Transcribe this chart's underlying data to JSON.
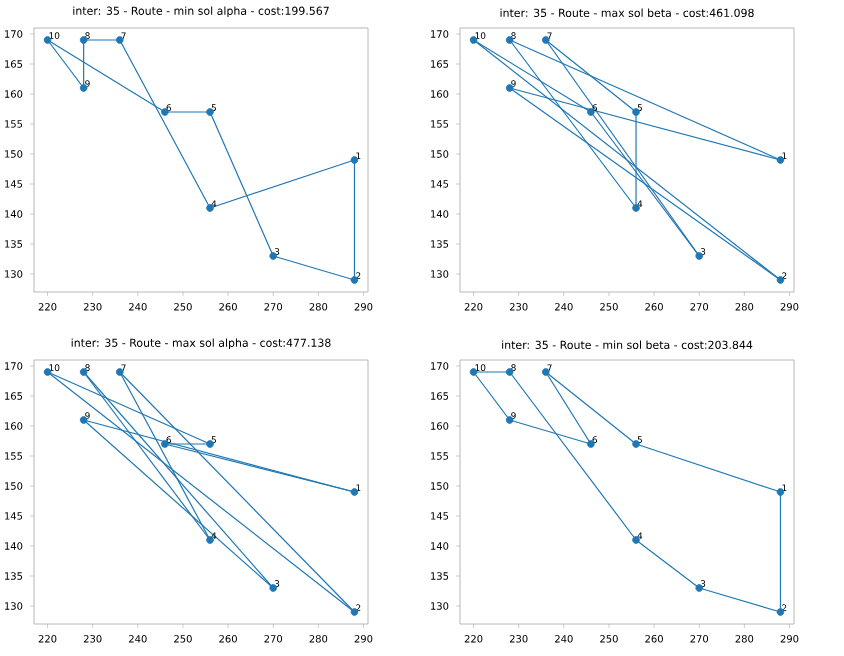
{
  "chart_data": [
    {
      "type": "line",
      "title": "inter: 35 - Route - min sol alpha - cost:199.567",
      "color": "#1f77b4",
      "xlim": [
        217,
        291
      ],
      "ylim": [
        127,
        171
      ],
      "xticks": [
        220,
        230,
        240,
        250,
        260,
        270,
        280,
        290
      ],
      "yticks": [
        130,
        135,
        140,
        145,
        150,
        155,
        160,
        165,
        170
      ],
      "series": [
        {
          "line_style": "solid",
          "x": [
            220,
            228,
            228,
            236,
            256,
            288,
            288
          ],
          "values": [
            169,
            161,
            169,
            169,
            141,
            149,
            129
          ]
        },
        {
          "line_style": "solid",
          "x": [
            288,
            270,
            256,
            246,
            220
          ],
          "values": [
            129,
            133,
            157,
            157,
            169
          ]
        },
        {
          "type": "scatter",
          "x": [
            288,
            288,
            270,
            256,
            256,
            246,
            236,
            228,
            228,
            220
          ],
          "values": [
            149,
            129,
            133,
            141,
            157,
            157,
            169,
            169,
            161,
            169
          ]
        }
      ],
      "annotations": [
        {
          "text": "1",
          "x": 288,
          "y": 149
        },
        {
          "text": "2",
          "x": 288,
          "y": 129
        },
        {
          "text": "3",
          "x": 270,
          "y": 133
        },
        {
          "text": "4",
          "x": 256,
          "y": 141
        },
        {
          "text": "5",
          "x": 256,
          "y": 157
        },
        {
          "text": "6",
          "x": 246,
          "y": 157
        },
        {
          "text": "7",
          "x": 236,
          "y": 169
        },
        {
          "text": "8",
          "x": 228,
          "y": 169
        },
        {
          "text": "9",
          "x": 228,
          "y": 161
        },
        {
          "text": "10",
          "x": 220,
          "y": 169
        }
      ]
    },
    {
      "type": "line",
      "title": "inter: 35 - Route - max sol beta - cost:461.098",
      "color": "#1f77b4",
      "xlim": [
        217,
        291
      ],
      "ylim": [
        127,
        171
      ],
      "xticks": [
        220,
        230,
        240,
        250,
        260,
        270,
        280,
        290
      ],
      "yticks": [
        130,
        135,
        140,
        145,
        150,
        155,
        160,
        165,
        170
      ],
      "series": [
        {
          "line_style": "solid",
          "x": [
            220,
            288
          ],
          "values": [
            169,
            129
          ]
        },
        {
          "line_style": "solid",
          "x": [
            288,
            228
          ],
          "values": [
            129,
            161
          ]
        },
        {
          "line_style": "solid",
          "x": [
            228,
            288
          ],
          "values": [
            161,
            149
          ]
        },
        {
          "line_style": "solid",
          "x": [
            288,
            228
          ],
          "values": [
            149,
            169
          ]
        },
        {
          "line_style": "solid",
          "x": [
            228,
            256,
            256
          ],
          "values": [
            169,
            141,
            157
          ]
        },
        {
          "line_style": "solid",
          "x": [
            256,
            236
          ],
          "values": [
            157,
            169
          ]
        },
        {
          "line_style": "solid",
          "x": [
            236,
            270
          ],
          "values": [
            169,
            133
          ]
        },
        {
          "line_style": "solid",
          "x": [
            270,
            246,
            220
          ],
          "values": [
            133,
            157,
            169
          ]
        },
        {
          "type": "scatter",
          "x": [
            288,
            288,
            270,
            256,
            256,
            246,
            236,
            228,
            228,
            220
          ],
          "values": [
            149,
            129,
            133,
            141,
            157,
            157,
            169,
            169,
            161,
            169
          ]
        }
      ],
      "annotations": [
        {
          "text": "1",
          "x": 288,
          "y": 149
        },
        {
          "text": "2",
          "x": 288,
          "y": 129
        },
        {
          "text": "3",
          "x": 270,
          "y": 133
        },
        {
          "text": "4",
          "x": 256,
          "y": 141
        },
        {
          "text": "5",
          "x": 256,
          "y": 157
        },
        {
          "text": "6",
          "x": 246,
          "y": 157
        },
        {
          "text": "7",
          "x": 236,
          "y": 169
        },
        {
          "text": "8",
          "x": 228,
          "y": 169
        },
        {
          "text": "9",
          "x": 228,
          "y": 161
        },
        {
          "text": "10",
          "x": 220,
          "y": 169
        }
      ]
    },
    {
      "type": "line",
      "title": "inter: 35 - Route - max sol alpha - cost:477.138",
      "color": "#1f77b4",
      "xlim": [
        217,
        291
      ],
      "ylim": [
        127,
        171
      ],
      "xticks": [
        220,
        230,
        240,
        250,
        260,
        270,
        280,
        290
      ],
      "yticks": [
        130,
        135,
        140,
        145,
        150,
        155,
        160,
        165,
        170
      ],
      "series": [
        {
          "line_style": "solid",
          "x": [
            220,
            256
          ],
          "values": [
            169,
            157
          ]
        },
        {
          "line_style": "solid",
          "x": [
            256,
            246
          ],
          "values": [
            157,
            157
          ]
        },
        {
          "line_style": "solid",
          "x": [
            246,
            288
          ],
          "values": [
            157,
            149
          ]
        },
        {
          "line_style": "solid",
          "x": [
            288,
            228
          ],
          "values": [
            149,
            161
          ]
        },
        {
          "line_style": "solid",
          "x": [
            228,
            270
          ],
          "values": [
            161,
            133
          ]
        },
        {
          "line_style": "solid",
          "x": [
            270,
            228
          ],
          "values": [
            133,
            169
          ]
        },
        {
          "line_style": "solid",
          "x": [
            228,
            256
          ],
          "values": [
            169,
            141
          ]
        },
        {
          "line_style": "solid",
          "x": [
            256,
            236
          ],
          "values": [
            141,
            169
          ]
        },
        {
          "line_style": "solid",
          "x": [
            236,
            288
          ],
          "values": [
            169,
            129
          ]
        },
        {
          "line_style": "solid",
          "x": [
            288,
            220
          ],
          "values": [
            129,
            169
          ]
        },
        {
          "type": "scatter",
          "x": [
            288,
            288,
            270,
            256,
            256,
            246,
            236,
            228,
            228,
            220
          ],
          "values": [
            149,
            129,
            133,
            141,
            157,
            157,
            169,
            169,
            161,
            169
          ]
        }
      ],
      "annotations": [
        {
          "text": "1",
          "x": 288,
          "y": 149
        },
        {
          "text": "2",
          "x": 288,
          "y": 129
        },
        {
          "text": "3",
          "x": 270,
          "y": 133
        },
        {
          "text": "4",
          "x": 256,
          "y": 141
        },
        {
          "text": "5",
          "x": 256,
          "y": 157
        },
        {
          "text": "6",
          "x": 246,
          "y": 157
        },
        {
          "text": "7",
          "x": 236,
          "y": 169
        },
        {
          "text": "8",
          "x": 228,
          "y": 169
        },
        {
          "text": "9",
          "x": 228,
          "y": 161
        },
        {
          "text": "10",
          "x": 220,
          "y": 169
        }
      ]
    },
    {
      "type": "line",
      "title": "inter: 35 - Route - min sol beta - cost:203.844",
      "color": "#1f77b4",
      "xlim": [
        217,
        291
      ],
      "ylim": [
        127,
        171
      ],
      "xticks": [
        220,
        230,
        240,
        250,
        260,
        270,
        280,
        290
      ],
      "yticks": [
        130,
        135,
        140,
        145,
        150,
        155,
        160,
        165,
        170
      ],
      "series": [
        {
          "line_style": "solid",
          "x": [
            220,
            228,
            256,
            270,
            288,
            288
          ],
          "values": [
            169,
            169,
            141,
            133,
            129,
            149
          ]
        },
        {
          "line_style": "solid",
          "x": [
            288,
            256,
            236
          ],
          "values": [
            149,
            157,
            169
          ]
        },
        {
          "line_style": "solid",
          "x": [
            236,
            246
          ],
          "values": [
            169,
            157
          ]
        },
        {
          "line_style": "solid",
          "x": [
            246,
            228,
            220
          ],
          "values": [
            157,
            161,
            169
          ]
        },
        {
          "type": "scatter",
          "x": [
            288,
            288,
            270,
            256,
            256,
            246,
            236,
            228,
            228,
            220
          ],
          "values": [
            149,
            129,
            133,
            141,
            157,
            157,
            169,
            169,
            161,
            169
          ]
        }
      ],
      "annotations": [
        {
          "text": "1",
          "x": 288,
          "y": 149
        },
        {
          "text": "2",
          "x": 288,
          "y": 129
        },
        {
          "text": "3",
          "x": 270,
          "y": 133
        },
        {
          "text": "4",
          "x": 256,
          "y": 141
        },
        {
          "text": "5",
          "x": 256,
          "y": 157
        },
        {
          "text": "6",
          "x": 246,
          "y": 157
        },
        {
          "text": "7",
          "x": 236,
          "y": 169
        },
        {
          "text": "8",
          "x": 228,
          "y": 169
        },
        {
          "text": "9",
          "x": 228,
          "y": 161
        },
        {
          "text": "10",
          "x": 220,
          "y": 169
        }
      ]
    }
  ]
}
